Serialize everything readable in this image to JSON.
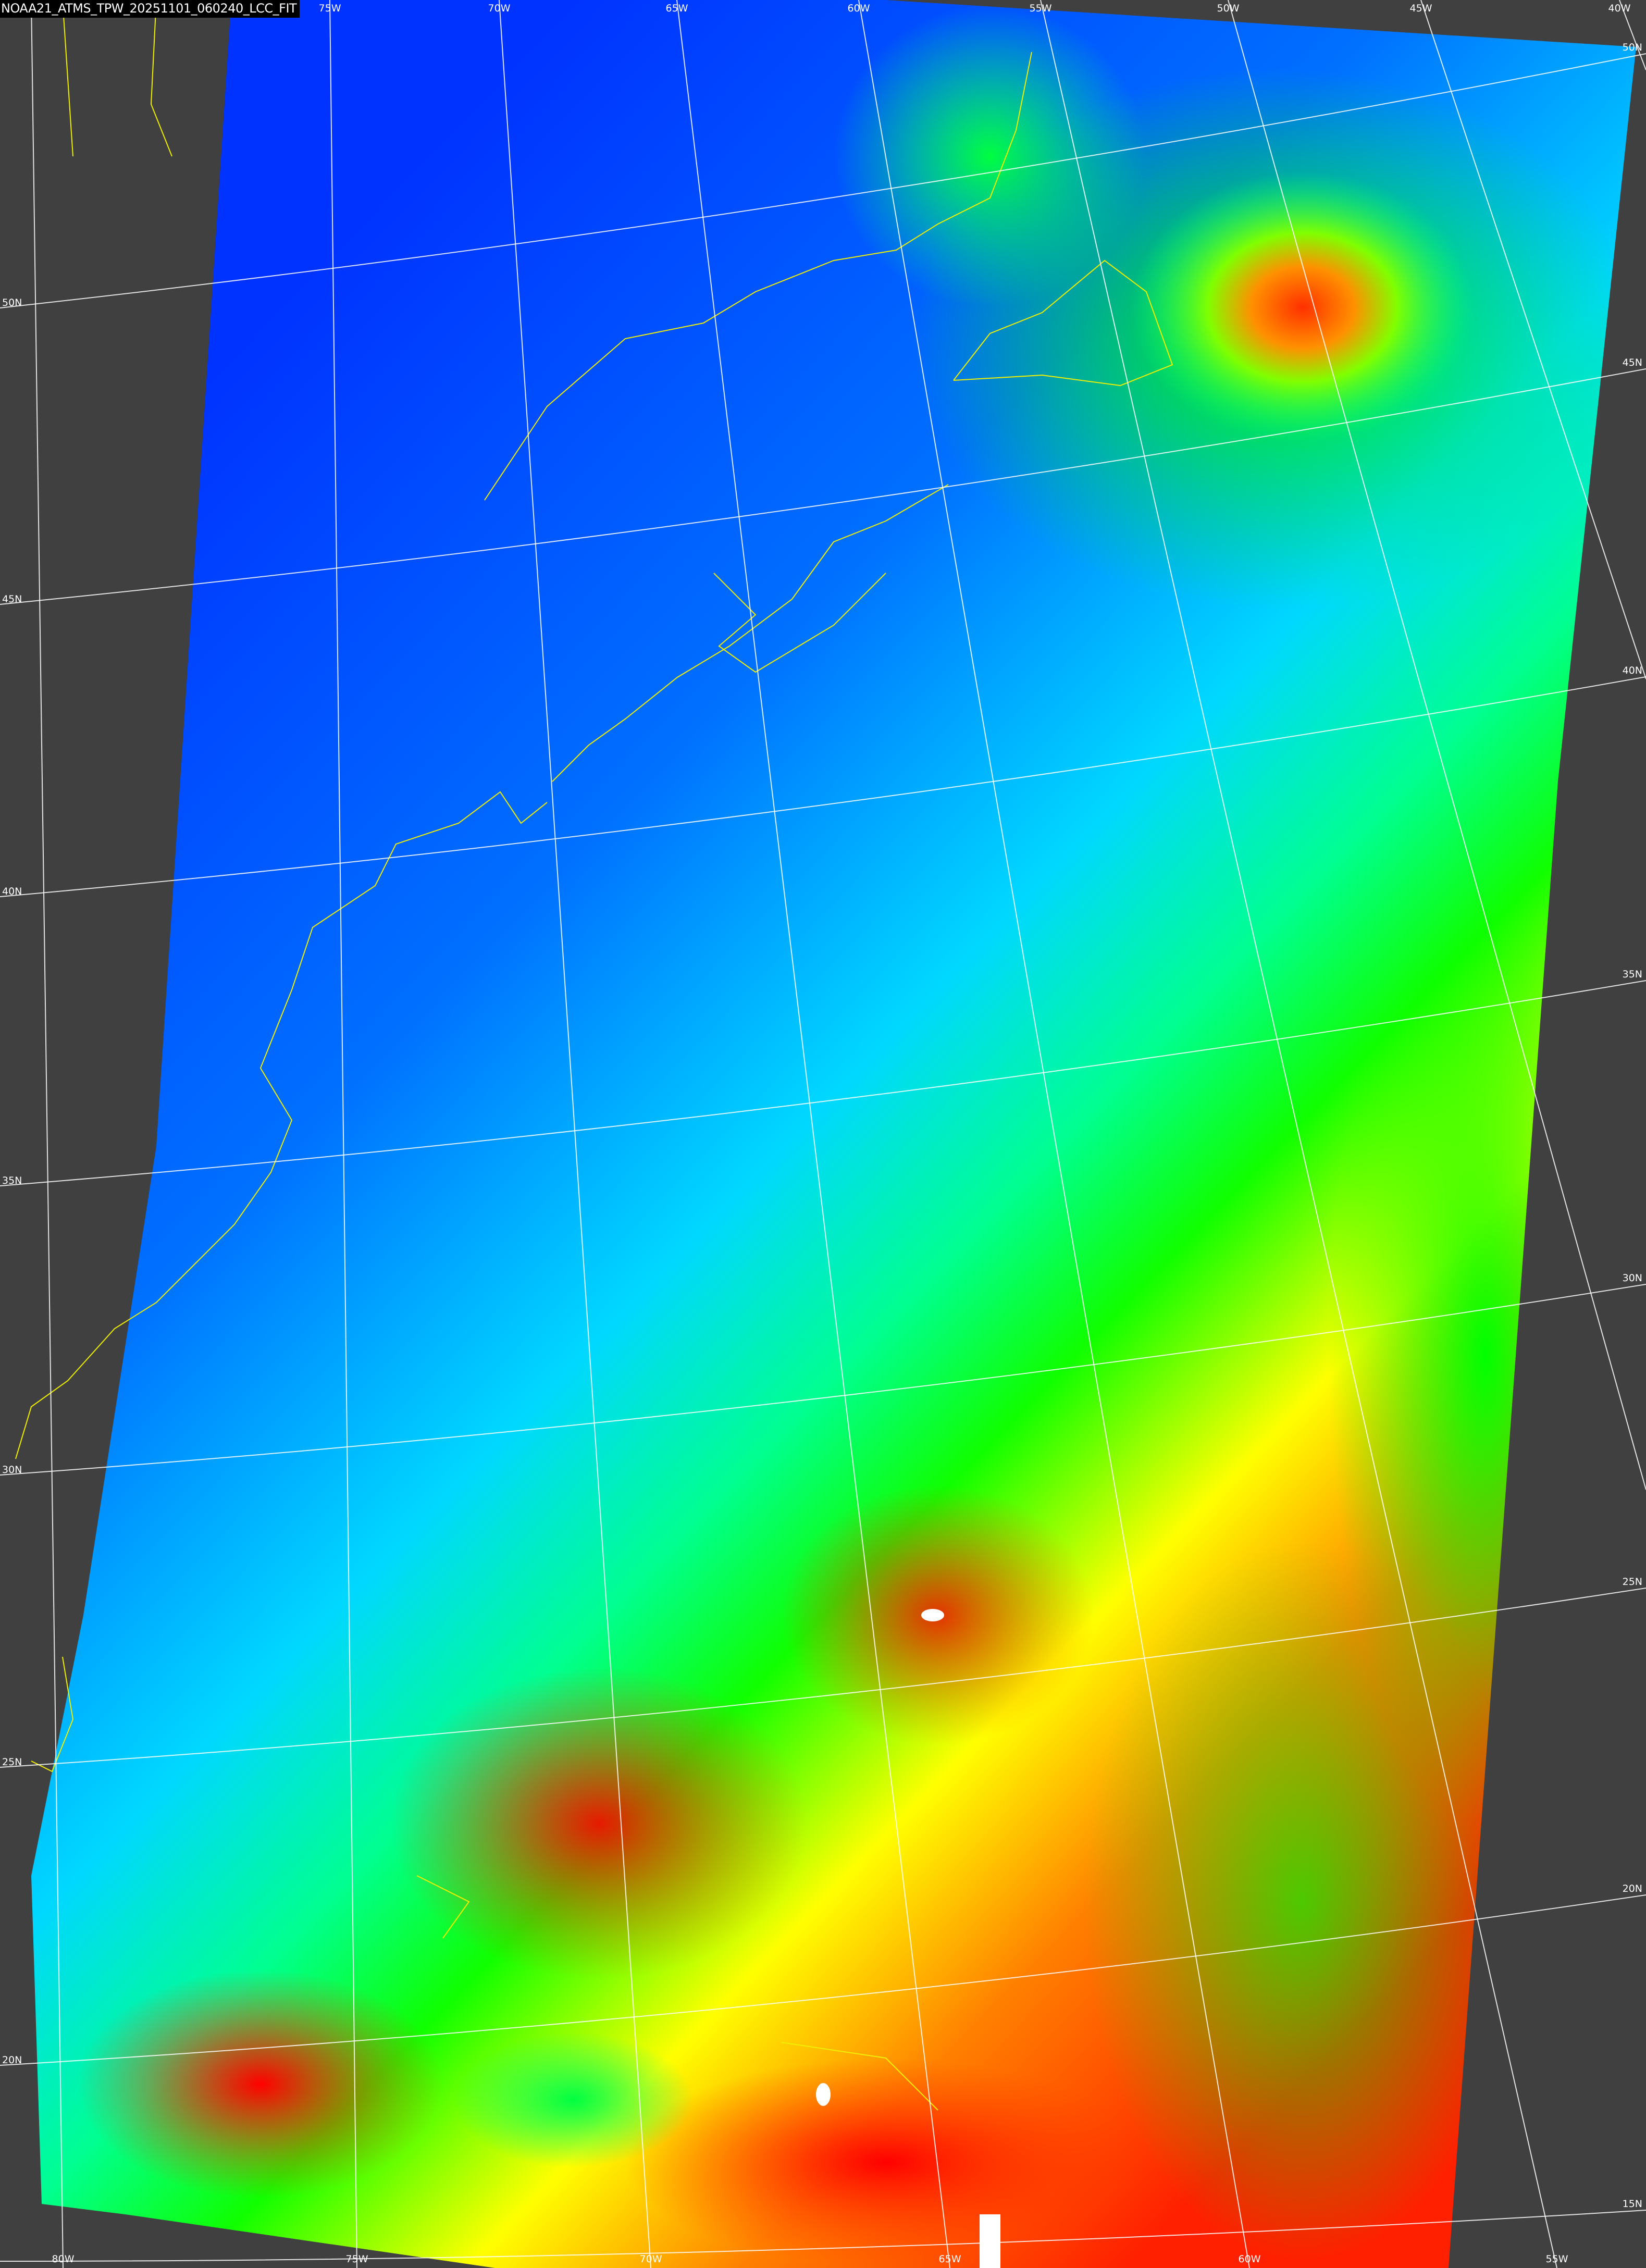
{
  "title": "NOAA21_ATMS_TPW_20251101_060240_LCC_FIT",
  "colors": {
    "background": "#404040",
    "grid": "#ffffff",
    "coastline": "#f0f000",
    "scale": [
      "#0033ff",
      "#0080ff",
      "#00ffff",
      "#00ff00",
      "#ffff00",
      "#ff8000",
      "#ff0000",
      "#ffffff"
    ]
  },
  "lon_labels_top": [
    "75W",
    "70W",
    "65W",
    "60W",
    "55W",
    "50W",
    "45W",
    "40W"
  ],
  "lon_labels_bottom": [
    "80W",
    "75W",
    "70W",
    "65W",
    "60W",
    "55W"
  ],
  "lat_labels_left": [
    "50N",
    "45N",
    "40N",
    "35N",
    "30N",
    "25N",
    "20N"
  ],
  "lat_labels_right": [
    "50N",
    "45N",
    "40N",
    "35N",
    "30N",
    "25N",
    "20N",
    "15N"
  ]
}
